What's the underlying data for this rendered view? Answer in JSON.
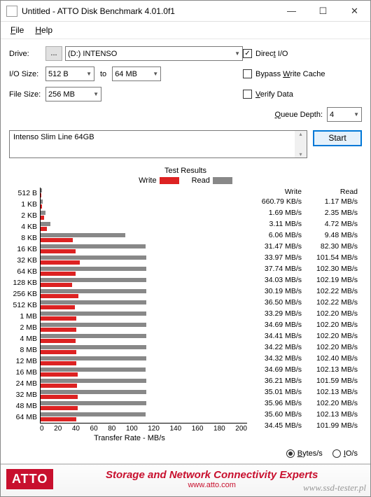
{
  "window": {
    "title": "Untitled - ATTO Disk Benchmark 4.01.0f1"
  },
  "menu": {
    "file": "File",
    "help": "Help"
  },
  "labels": {
    "drive": "Drive:",
    "io_size": "I/O Size:",
    "file_size": "File Size:",
    "to": "to",
    "queue_depth": "Queue Depth:"
  },
  "controls": {
    "ellipsis": "...",
    "drive_value": "(D:) INTENSO",
    "io_from": "512 B",
    "io_to": "64 MB",
    "file_size": "256 MB",
    "queue_depth": "4",
    "description": "Intenso Slim Line 64GB"
  },
  "checks": {
    "direct_io": {
      "label": "Direct I/O",
      "checked": true
    },
    "bypass": {
      "label": "Bypass Write Cache",
      "checked": false
    },
    "verify": {
      "label": "Verify Data",
      "checked": false
    }
  },
  "buttons": {
    "start": "Start"
  },
  "results_title": "Test Results",
  "legend": {
    "write": "Write",
    "read": "Read"
  },
  "xaxis": {
    "label": "Transfer Rate - MB/s",
    "max": 200,
    "ticks": [
      "0",
      "20",
      "40",
      "60",
      "80",
      "100",
      "120",
      "140",
      "160",
      "180",
      "200"
    ]
  },
  "columns": {
    "write": "Write",
    "read": "Read"
  },
  "rows": [
    {
      "label": "512 B",
      "write_txt": "660.79 KB/s",
      "read_txt": "1.17 MB/s",
      "write_mb": 0.66,
      "read_mb": 1.17
    },
    {
      "label": "1 KB",
      "write_txt": "1.69 MB/s",
      "read_txt": "2.35 MB/s",
      "write_mb": 1.69,
      "read_mb": 2.35
    },
    {
      "label": "2 KB",
      "write_txt": "3.11 MB/s",
      "read_txt": "4.72 MB/s",
      "write_mb": 3.11,
      "read_mb": 4.72
    },
    {
      "label": "4 KB",
      "write_txt": "6.06 MB/s",
      "read_txt": "9.48 MB/s",
      "write_mb": 6.06,
      "read_mb": 9.48
    },
    {
      "label": "8 KB",
      "write_txt": "31.47 MB/s",
      "read_txt": "82.30 MB/s",
      "write_mb": 31.47,
      "read_mb": 82.3
    },
    {
      "label": "16 KB",
      "write_txt": "33.97 MB/s",
      "read_txt": "101.54 MB/s",
      "write_mb": 33.97,
      "read_mb": 101.54
    },
    {
      "label": "32 KB",
      "write_txt": "37.74 MB/s",
      "read_txt": "102.30 MB/s",
      "write_mb": 37.74,
      "read_mb": 102.3
    },
    {
      "label": "64 KB",
      "write_txt": "34.03 MB/s",
      "read_txt": "102.19 MB/s",
      "write_mb": 34.03,
      "read_mb": 102.19
    },
    {
      "label": "128 KB",
      "write_txt": "30.19 MB/s",
      "read_txt": "102.22 MB/s",
      "write_mb": 30.19,
      "read_mb": 102.22
    },
    {
      "label": "256 KB",
      "write_txt": "36.50 MB/s",
      "read_txt": "102.22 MB/s",
      "write_mb": 36.5,
      "read_mb": 102.22
    },
    {
      "label": "512 KB",
      "write_txt": "33.29 MB/s",
      "read_txt": "102.20 MB/s",
      "write_mb": 33.29,
      "read_mb": 102.2
    },
    {
      "label": "1 MB",
      "write_txt": "34.69 MB/s",
      "read_txt": "102.20 MB/s",
      "write_mb": 34.69,
      "read_mb": 102.2
    },
    {
      "label": "2 MB",
      "write_txt": "34.41 MB/s",
      "read_txt": "102.20 MB/s",
      "write_mb": 34.41,
      "read_mb": 102.2
    },
    {
      "label": "4 MB",
      "write_txt": "34.22 MB/s",
      "read_txt": "102.20 MB/s",
      "write_mb": 34.22,
      "read_mb": 102.2
    },
    {
      "label": "8 MB",
      "write_txt": "34.32 MB/s",
      "read_txt": "102.40 MB/s",
      "write_mb": 34.32,
      "read_mb": 102.4
    },
    {
      "label": "12 MB",
      "write_txt": "34.69 MB/s",
      "read_txt": "102.13 MB/s",
      "write_mb": 34.69,
      "read_mb": 102.13
    },
    {
      "label": "16 MB",
      "write_txt": "36.21 MB/s",
      "read_txt": "101.59 MB/s",
      "write_mb": 36.21,
      "read_mb": 101.59
    },
    {
      "label": "24 MB",
      "write_txt": "35.01 MB/s",
      "read_txt": "102.13 MB/s",
      "write_mb": 35.01,
      "read_mb": 102.13
    },
    {
      "label": "32 MB",
      "write_txt": "35.96 MB/s",
      "read_txt": "102.20 MB/s",
      "write_mb": 35.96,
      "read_mb": 102.2
    },
    {
      "label": "48 MB",
      "write_txt": "35.60 MB/s",
      "read_txt": "102.13 MB/s",
      "write_mb": 35.6,
      "read_mb": 102.13
    },
    {
      "label": "64 MB",
      "write_txt": "34.45 MB/s",
      "read_txt": "101.99 MB/s",
      "write_mb": 34.45,
      "read_mb": 101.99
    }
  ],
  "units": {
    "bytes": "Bytes/s",
    "io": "IO/s",
    "selected": "bytes"
  },
  "footer": {
    "logo": "ATTO",
    "headline": "Storage and Network Connectivity Experts",
    "url": "www.atto.com"
  },
  "watermark": "www.ssd-tester.pl",
  "colors": {
    "write": "#d22",
    "read": "#888",
    "accent": "#0078d7",
    "atto_red": "#c8102e"
  }
}
